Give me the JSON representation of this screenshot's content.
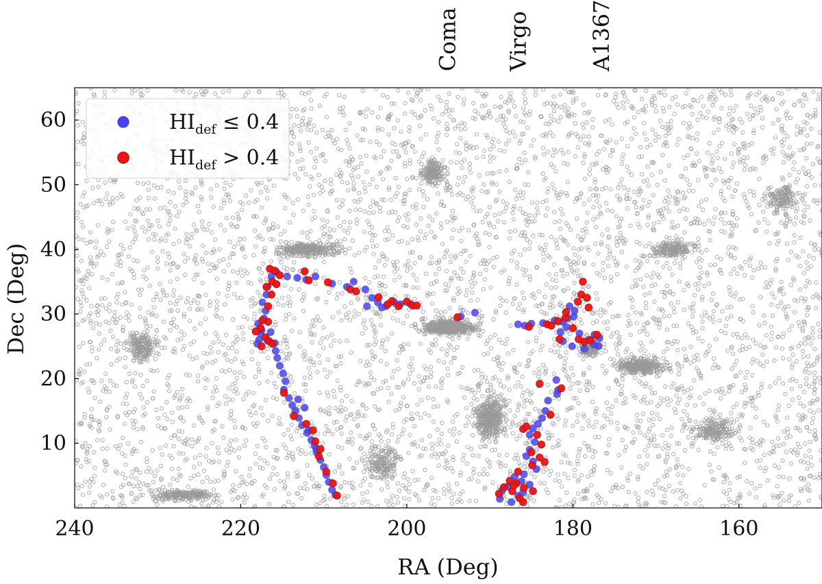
{
  "chart_data": {
    "type": "scatter",
    "title": "",
    "xlabel": "RA (Deg)",
    "ylabel": "Dec (Deg)",
    "xlim": [
      240,
      150
    ],
    "ylim": [
      0,
      65
    ],
    "x_reversed": true,
    "grid": false,
    "legend_position": "top-left",
    "xticks": [
      240,
      220,
      200,
      180,
      160
    ],
    "yticks": [
      10,
      20,
      30,
      40,
      50,
      60
    ],
    "background_points_color": "#9a9a9a",
    "annotations": [
      {
        "text": "Coma",
        "ra": 195
      },
      {
        "text": "Virgo",
        "ra": 186.5
      },
      {
        "text": "A1367",
        "ra": 176.5
      }
    ],
    "legend": [
      {
        "base": "HI",
        "sub": "def",
        "rel": " ≤ 0.4",
        "color": "#4444ee"
      },
      {
        "base": "HI",
        "sub": "def",
        "rel": " > 0.4",
        "color": "#ee1111"
      }
    ],
    "series": [
      {
        "name": "HI_def ≤ 0.4",
        "color": "#4444ee",
        "points": [
          [
            217.8,
            26.0
          ],
          [
            217.5,
            27.5
          ],
          [
            217.9,
            28.5
          ],
          [
            217.2,
            29.3
          ],
          [
            218.0,
            25.4
          ],
          [
            216.8,
            25.9
          ],
          [
            217.0,
            30.5
          ],
          [
            217.4,
            31.8
          ],
          [
            216.9,
            33.0
          ],
          [
            216.8,
            34.2
          ],
          [
            217.6,
            27.0
          ],
          [
            216.4,
            27.2
          ],
          [
            215.9,
            25.5
          ],
          [
            215.8,
            24.3
          ],
          [
            215.6,
            23.2
          ],
          [
            215.3,
            22.0
          ],
          [
            214.9,
            20.8
          ],
          [
            214.6,
            19.6
          ],
          [
            214.8,
            18.3
          ],
          [
            214.2,
            17.0
          ],
          [
            213.8,
            15.9
          ],
          [
            213.4,
            15.0
          ],
          [
            213.0,
            13.9
          ],
          [
            212.6,
            12.8
          ],
          [
            212.0,
            11.6
          ],
          [
            211.5,
            10.5
          ],
          [
            211.1,
            9.6
          ],
          [
            210.8,
            8.5
          ],
          [
            210.4,
            7.4
          ],
          [
            210.0,
            6.3
          ],
          [
            209.7,
            5.1
          ],
          [
            209.4,
            4.0
          ],
          [
            209.0,
            2.8
          ],
          [
            208.6,
            2.0
          ],
          [
            212.3,
            15.5
          ],
          [
            213.1,
            16.8
          ],
          [
            211.8,
            12.0
          ],
          [
            210.9,
            9.0
          ],
          [
            215.7,
            36.5
          ],
          [
            214.4,
            35.8
          ],
          [
            213.2,
            35.6
          ],
          [
            212.1,
            35.3
          ],
          [
            211.0,
            35.8
          ],
          [
            216.3,
            35.8
          ],
          [
            209.0,
            34.7
          ],
          [
            207.2,
            34.2
          ],
          [
            206.4,
            35.0
          ],
          [
            205.0,
            33.8
          ],
          [
            204.2,
            32.5
          ],
          [
            203.5,
            31.8
          ],
          [
            202.5,
            31.2
          ],
          [
            201.5,
            31.8
          ],
          [
            200.8,
            31.5
          ],
          [
            199.6,
            31.6
          ],
          [
            203.0,
            31.0
          ],
          [
            204.8,
            31.2
          ],
          [
            193.5,
            29.6
          ],
          [
            191.8,
            30.2
          ],
          [
            186.6,
            28.4
          ],
          [
            185.8,
            28.2
          ],
          [
            185.0,
            28.5
          ],
          [
            183.6,
            28.6
          ],
          [
            182.2,
            29.0
          ],
          [
            181.2,
            28.8
          ],
          [
            180.6,
            29.3
          ],
          [
            179.9,
            29.6
          ],
          [
            180.8,
            28.0
          ],
          [
            181.5,
            27.2
          ],
          [
            179.2,
            27.0
          ],
          [
            178.0,
            26.0
          ],
          [
            177.5,
            25.3
          ],
          [
            177.4,
            26.8
          ],
          [
            181.2,
            25.8
          ],
          [
            180.1,
            25.0
          ],
          [
            178.6,
            24.6
          ],
          [
            176.9,
            25.0
          ],
          [
            176.8,
            26.3
          ],
          [
            179.8,
            30.5
          ],
          [
            180.4,
            31.2
          ],
          [
            182.0,
            19.8
          ],
          [
            181.8,
            18.2
          ],
          [
            181.9,
            17.6
          ],
          [
            183.0,
            16.6
          ],
          [
            183.3,
            15.0
          ],
          [
            183.7,
            13.9
          ],
          [
            184.2,
            13.0
          ],
          [
            184.8,
            12.3
          ],
          [
            185.2,
            11.3
          ],
          [
            184.6,
            10.2
          ],
          [
            185.2,
            9.0
          ],
          [
            185.6,
            8.0
          ],
          [
            184.8,
            7.2
          ],
          [
            184.4,
            6.0
          ],
          [
            185.9,
            5.2
          ],
          [
            187.0,
            4.8
          ],
          [
            186.2,
            4.1
          ],
          [
            187.8,
            3.3
          ],
          [
            188.5,
            2.7
          ],
          [
            186.6,
            1.9
          ],
          [
            187.4,
            0.9
          ],
          [
            186.0,
            2.4
          ],
          [
            185.2,
            3.6
          ],
          [
            188.8,
            1.4
          ]
        ]
      },
      {
        "name": "HI_def > 0.4",
        "color": "#ee1111",
        "points": [
          [
            216.5,
            37.0
          ],
          [
            215.9,
            36.7
          ],
          [
            215.3,
            36.0
          ],
          [
            216.2,
            35.0
          ],
          [
            215.7,
            34.6
          ],
          [
            216.9,
            34.2
          ],
          [
            212.3,
            36.6
          ],
          [
            211.8,
            35.2
          ],
          [
            209.5,
            34.9
          ],
          [
            217.6,
            27.8
          ],
          [
            218.2,
            27.3
          ],
          [
            216.7,
            28.8
          ],
          [
            217.4,
            29.0
          ],
          [
            216.7,
            31.2
          ],
          [
            216.3,
            33.0
          ],
          [
            217.0,
            26.4
          ],
          [
            216.6,
            25.8
          ],
          [
            216.2,
            25.4
          ],
          [
            217.5,
            25.0
          ],
          [
            212.1,
            13.0
          ],
          [
            211.3,
            12.0
          ],
          [
            211.0,
            10.3
          ],
          [
            210.4,
            9.1
          ],
          [
            210.6,
            8.0
          ],
          [
            209.7,
            5.6
          ],
          [
            208.9,
            3.8
          ],
          [
            208.4,
            1.9
          ],
          [
            214.8,
            17.8
          ],
          [
            213.6,
            14.2
          ],
          [
            206.8,
            33.8
          ],
          [
            206.1,
            33.5
          ],
          [
            203.4,
            32.6
          ],
          [
            201.8,
            32.0
          ],
          [
            201.0,
            31.2
          ],
          [
            200.0,
            31.9
          ],
          [
            199.3,
            31.3
          ],
          [
            198.8,
            31.3
          ],
          [
            193.9,
            29.5
          ],
          [
            202.3,
            31.5
          ],
          [
            185.3,
            28.0
          ],
          [
            183.1,
            28.4
          ],
          [
            182.6,
            28.2
          ],
          [
            181.8,
            28.9
          ],
          [
            180.9,
            29.4
          ],
          [
            179.4,
            31.9
          ],
          [
            179.0,
            33.0
          ],
          [
            178.3,
            32.5
          ],
          [
            178.1,
            31.0
          ],
          [
            178.8,
            35.0
          ],
          [
            180.0,
            27.8
          ],
          [
            179.3,
            26.1
          ],
          [
            178.6,
            25.7
          ],
          [
            177.9,
            25.9
          ],
          [
            177.1,
            26.8
          ],
          [
            181.6,
            26.1
          ],
          [
            180.8,
            30.3
          ],
          [
            184.0,
            19.2
          ],
          [
            181.4,
            18.5
          ],
          [
            182.7,
            14.4
          ],
          [
            186.0,
            12.2
          ],
          [
            185.6,
            12.6
          ],
          [
            184.3,
            11.3
          ],
          [
            183.8,
            9.8
          ],
          [
            185.0,
            8.6
          ],
          [
            184.0,
            7.8
          ],
          [
            184.9,
            6.6
          ],
          [
            183.4,
            7.1
          ],
          [
            186.6,
            5.6
          ],
          [
            187.6,
            4.2
          ],
          [
            186.8,
            3.8
          ],
          [
            188.3,
            3.2
          ],
          [
            187.3,
            2.6
          ],
          [
            185.9,
            3.1
          ],
          [
            188.9,
            2.2
          ],
          [
            186.4,
            1.5
          ],
          [
            184.8,
            2.6
          ],
          [
            187.1,
            3.5
          ],
          [
            186.0,
            0.9
          ]
        ]
      }
    ]
  }
}
